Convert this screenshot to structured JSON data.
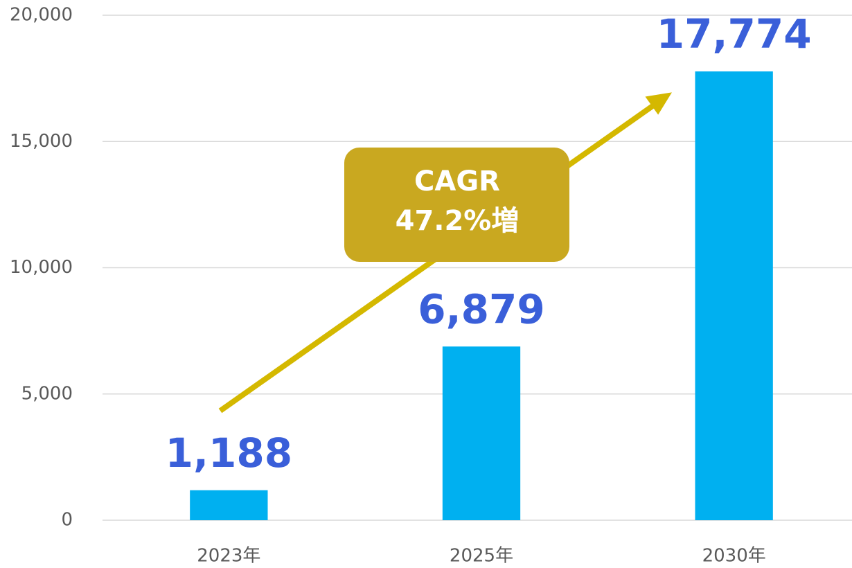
{
  "chart_data": {
    "type": "bar",
    "categories": [
      "2023年",
      "2025年",
      "2030年"
    ],
    "values": [
      1188,
      6879,
      17774
    ],
    "value_labels": [
      "1,188",
      "6,879",
      "17,774"
    ],
    "color": "#00b0f0",
    "ylim": [
      0,
      20000
    ],
    "yticks": [
      0,
      {
        "value": 5000,
        "label": "5,000"
      },
      {
        "value": 10000,
        "label": "10,000"
      },
      {
        "value": 15000,
        "label": "15,000"
      },
      {
        "value": 20000,
        "label": "20,000"
      }
    ],
    "grid": true,
    "annotation": [
      "CAGR",
      "47.2%増"
    ]
  }
}
